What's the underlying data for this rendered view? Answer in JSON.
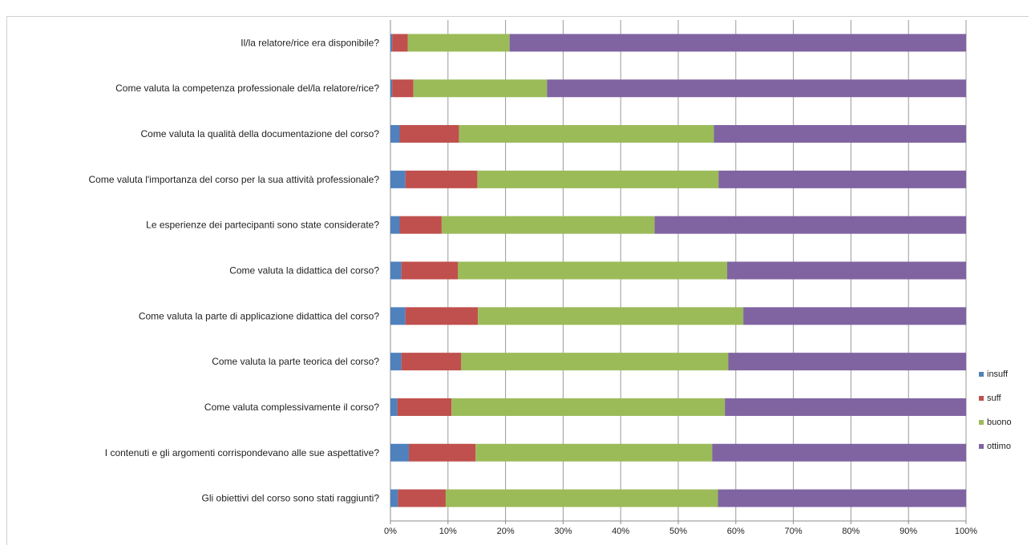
{
  "chart_data": {
    "type": "bar",
    "orientation": "horizontal",
    "stacked": "percent",
    "title": "",
    "xlabel": "",
    "ylabel": "",
    "xlim": [
      0,
      100
    ],
    "x_ticks": [
      "0%",
      "10%",
      "20%",
      "30%",
      "40%",
      "50%",
      "60%",
      "70%",
      "80%",
      "90%",
      "100%"
    ],
    "grid": "vertical",
    "legend_position": "right",
    "categories": [
      "Il/la relatore/rice era disponibile?",
      "Come valuta la competenza professionale del/la relatore/rice?",
      "Come valuta la qualità della documentazione del corso?",
      "Come valuta l'importanza del corso per la sua attività professionale?",
      "Le esperienze dei partecipanti sono state considerate?",
      "Come valuta la didattica del corso?",
      "Come valuta la parte di applicazione didattica del corso?",
      "Come valuta la parte teorica del corso?",
      "Come valuta complessivamente il corso?",
      "I contenuti e gli argomenti corrispondevano alle sue aspettative?",
      "Gli obiettivi del corso sono stati raggiunti?"
    ],
    "series": [
      {
        "name": "insuff",
        "color": "#4f81bd",
        "values": [
          0.3,
          0.3,
          1.6,
          2.6,
          1.6,
          1.9,
          2.6,
          1.9,
          1.2,
          3.2,
          1.3
        ]
      },
      {
        "name": "suff",
        "color": "#c0504d",
        "values": [
          2.7,
          3.7,
          10.3,
          12.5,
          7.3,
          9.8,
          12.6,
          10.4,
          9.4,
          11.6,
          8.3
        ]
      },
      {
        "name": "buono",
        "color": "#9bbb59",
        "values": [
          17.7,
          23.2,
          44.3,
          41.9,
          37.0,
          46.8,
          46.1,
          46.4,
          47.5,
          41.1,
          47.3
        ]
      },
      {
        "name": "ottimo",
        "color": "#8064a2",
        "values": [
          79.3,
          72.8,
          43.8,
          43.0,
          54.1,
          41.5,
          38.7,
          41.3,
          41.9,
          44.1,
          43.1
        ]
      }
    ]
  }
}
